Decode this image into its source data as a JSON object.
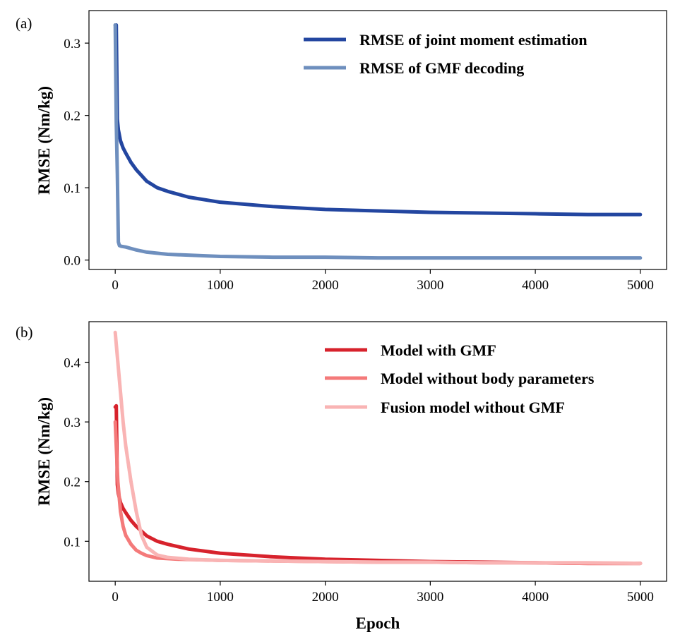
{
  "figure": {
    "panels": [
      {
        "label": "(a)",
        "ylabel": "RMSE (Nm/kg)",
        "xlabel": "",
        "xlim": [
          -250,
          5250
        ],
        "ylim": [
          -0.013,
          0.345
        ],
        "xticks": [
          0,
          1000,
          2000,
          3000,
          4000,
          5000
        ],
        "xtick_labels": [
          "0",
          "1000",
          "2000",
          "3000",
          "4000",
          "5000"
        ],
        "yticks": [
          0.0,
          0.1,
          0.2,
          0.3
        ],
        "ytick_labels": [
          "0.0",
          "0.1",
          "0.2",
          "0.3"
        ],
        "series": [
          {
            "name": "RMSE of joint moment estimation",
            "color": "#2346a0",
            "width": 5
          },
          {
            "name": "RMSE of GMF decoding",
            "color": "#6e8fbe",
            "width": 5
          }
        ]
      },
      {
        "label": "(b)",
        "ylabel": "RMSE (Nm/kg)",
        "xlabel": "Epoch",
        "xlim": [
          -250,
          5250
        ],
        "ylim": [
          0.033,
          0.468
        ],
        "xticks": [
          0,
          1000,
          2000,
          3000,
          4000,
          5000
        ],
        "xtick_labels": [
          "0",
          "1000",
          "2000",
          "3000",
          "4000",
          "5000"
        ],
        "yticks": [
          0.1,
          0.2,
          0.3,
          0.4
        ],
        "ytick_labels": [
          "0.1",
          "0.2",
          "0.3",
          "0.4"
        ],
        "series": [
          {
            "name": "Model with GMF",
            "color": "#d7222c",
            "width": 5
          },
          {
            "name": "Model without body parameters",
            "color": "#f47a7a",
            "width": 5
          },
          {
            "name": "Fusion model without GMF",
            "color": "#f9b4b4",
            "width": 5
          }
        ]
      }
    ]
  },
  "chart_data": [
    {
      "type": "line",
      "title": "(a)",
      "xlabel": "",
      "ylabel": "RMSE (Nm/kg)",
      "xlim": [
        -250,
        5250
      ],
      "ylim": [
        -0.013,
        0.345
      ],
      "legend": "top-right",
      "grid": false,
      "series": [
        {
          "name": "RMSE of joint moment estimation",
          "x": [
            0,
            10,
            20,
            30,
            50,
            75,
            100,
            150,
            200,
            250,
            300,
            400,
            500,
            700,
            1000,
            1500,
            2000,
            2500,
            3000,
            3500,
            4000,
            4500,
            5000
          ],
          "y": [
            0.325,
            0.325,
            0.195,
            0.18,
            0.165,
            0.155,
            0.148,
            0.135,
            0.125,
            0.117,
            0.109,
            0.1,
            0.095,
            0.087,
            0.08,
            0.074,
            0.07,
            0.068,
            0.066,
            0.065,
            0.064,
            0.063,
            0.063
          ]
        },
        {
          "name": "RMSE of GMF decoding",
          "x": [
            0,
            10,
            20,
            30,
            40,
            60,
            100,
            150,
            200,
            300,
            500,
            1000,
            1500,
            2000,
            2500,
            3000,
            3500,
            4000,
            4500,
            5000
          ],
          "y": [
            0.325,
            0.19,
            0.12,
            0.025,
            0.02,
            0.019,
            0.018,
            0.016,
            0.014,
            0.011,
            0.008,
            0.005,
            0.004,
            0.004,
            0.003,
            0.003,
            0.003,
            0.003,
            0.003,
            0.003
          ]
        }
      ]
    },
    {
      "type": "line",
      "title": "(b)",
      "xlabel": "Epoch",
      "ylabel": "RMSE (Nm/kg)",
      "xlim": [
        -250,
        5250
      ],
      "ylim": [
        0.033,
        0.468
      ],
      "legend": "top-right",
      "grid": false,
      "series": [
        {
          "name": "Model with GMF",
          "x": [
            0,
            10,
            20,
            30,
            50,
            75,
            100,
            150,
            200,
            250,
            300,
            400,
            500,
            700,
            1000,
            1500,
            2000,
            2500,
            3000,
            3500,
            4000,
            4500,
            5000
          ],
          "y": [
            0.325,
            0.327,
            0.195,
            0.18,
            0.165,
            0.155,
            0.148,
            0.135,
            0.125,
            0.117,
            0.109,
            0.1,
            0.095,
            0.087,
            0.08,
            0.074,
            0.07,
            0.068,
            0.066,
            0.065,
            0.064,
            0.063,
            0.063
          ]
        },
        {
          "name": "Model without body parameters",
          "x": [
            0,
            25,
            50,
            75,
            100,
            150,
            200,
            250,
            300,
            400,
            600,
            800,
            1000,
            1500,
            2000,
            2500,
            3000,
            3500,
            4000,
            4500,
            5000
          ],
          "y": [
            0.3,
            0.2,
            0.15,
            0.125,
            0.11,
            0.095,
            0.085,
            0.08,
            0.076,
            0.072,
            0.07,
            0.069,
            0.068,
            0.067,
            0.066,
            0.065,
            0.065,
            0.064,
            0.064,
            0.063,
            0.063
          ]
        },
        {
          "name": "Fusion model without GMF",
          "x": [
            0,
            25,
            50,
            75,
            100,
            150,
            200,
            250,
            300,
            400,
            500,
            700,
            1000,
            1500,
            2000,
            2500,
            3000,
            3500,
            4000,
            4500,
            5000
          ],
          "y": [
            0.45,
            0.4,
            0.35,
            0.3,
            0.26,
            0.2,
            0.15,
            0.11,
            0.09,
            0.077,
            0.073,
            0.07,
            0.068,
            0.067,
            0.066,
            0.065,
            0.065,
            0.064,
            0.064,
            0.064,
            0.063
          ]
        }
      ]
    }
  ]
}
